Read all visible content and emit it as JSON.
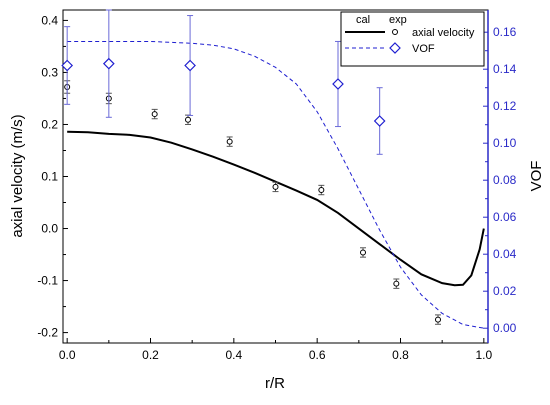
{
  "chart_data": {
    "type": "line",
    "xlabel": "r/R",
    "ylabel_left": "axial velocity (m/s)",
    "ylabel_right": "VOF",
    "xlim": [
      -0.01,
      1.01
    ],
    "ylim_left": [
      -0.22,
      0.42
    ],
    "ylim_right": [
      -0.008,
      0.172
    ],
    "x_ticks": [
      "0.0",
      "0.2",
      "0.4",
      "0.6",
      "0.8",
      "1.0"
    ],
    "y_left_ticks": [
      "-0.2",
      "-0.1",
      "0.0",
      "0.1",
      "0.2",
      "0.3",
      "0.4"
    ],
    "y_right_ticks": [
      "0.00",
      "0.02",
      "0.04",
      "0.06",
      "0.08",
      "0.10",
      "0.12",
      "0.14",
      "0.16"
    ],
    "legend": {
      "headers": [
        "cal",
        "exp"
      ],
      "entries": [
        "axial velocity",
        "VOF"
      ],
      "position": "top-right"
    },
    "colors": {
      "velocity": "#000000",
      "vof": "#1f1fd0"
    },
    "series": [
      {
        "name": "axial velocity",
        "kind": "cal",
        "axis": "left",
        "x": [
          0.0,
          0.05,
          0.1,
          0.15,
          0.2,
          0.25,
          0.3,
          0.35,
          0.4,
          0.45,
          0.5,
          0.55,
          0.6,
          0.65,
          0.7,
          0.75,
          0.8,
          0.85,
          0.9,
          0.93,
          0.95,
          0.97,
          0.99,
          1.0
        ],
        "y": [
          0.186,
          0.185,
          0.182,
          0.18,
          0.175,
          0.165,
          0.152,
          0.138,
          0.123,
          0.107,
          0.09,
          0.073,
          0.055,
          0.03,
          0.0,
          -0.03,
          -0.06,
          -0.088,
          -0.105,
          -0.109,
          -0.108,
          -0.09,
          -0.04,
          0.0
        ]
      },
      {
        "name": "axial velocity",
        "kind": "exp",
        "axis": "left",
        "x": [
          0.0,
          0.1,
          0.21,
          0.29,
          0.39,
          0.5,
          0.61,
          0.71,
          0.79,
          0.89
        ],
        "y": [
          0.272,
          0.25,
          0.22,
          0.209,
          0.167,
          0.08,
          0.074,
          -0.046,
          -0.106,
          -0.175
        ],
        "err": [
          0.012,
          0.01,
          0.009,
          0.009,
          0.009,
          0.009,
          0.009,
          0.009,
          0.009,
          0.009
        ]
      },
      {
        "name": "VOF",
        "kind": "cal",
        "axis": "right",
        "x": [
          0.0,
          0.1,
          0.2,
          0.3,
          0.35,
          0.4,
          0.45,
          0.5,
          0.55,
          0.6,
          0.65,
          0.7,
          0.75,
          0.8,
          0.85,
          0.9,
          0.95,
          1.0
        ],
        "y": [
          0.155,
          0.155,
          0.155,
          0.154,
          0.153,
          0.151,
          0.147,
          0.141,
          0.132,
          0.117,
          0.097,
          0.075,
          0.053,
          0.033,
          0.018,
          0.008,
          0.002,
          0.0
        ]
      },
      {
        "name": "VOF",
        "kind": "exp",
        "axis": "right",
        "x": [
          0.0,
          0.1,
          0.295,
          0.65,
          0.75
        ],
        "y": [
          0.142,
          0.143,
          0.142,
          0.132,
          0.112
        ],
        "err": [
          0.021,
          0.029,
          0.027,
          0.023,
          0.018
        ]
      }
    ]
  }
}
